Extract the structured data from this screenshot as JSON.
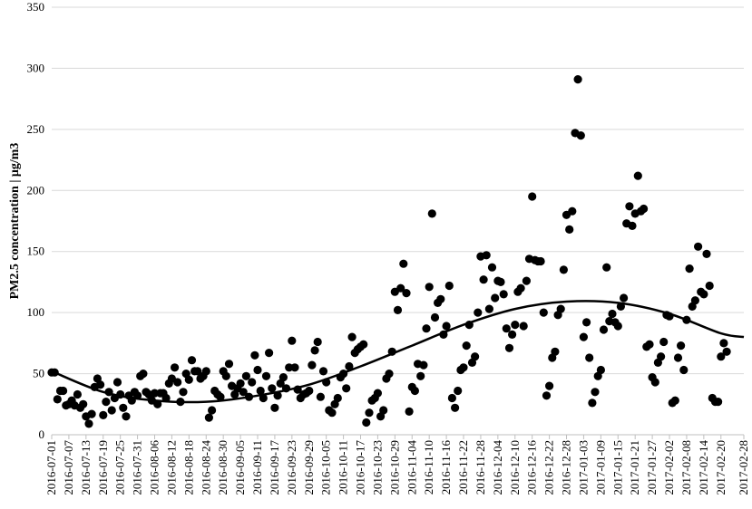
{
  "chart_data": {
    "type": "scatter",
    "ylabel": "PM2.5 concentration | μg/m3",
    "xlabel": "",
    "ylim": [
      0,
      350
    ],
    "yticks": [
      0,
      50,
      100,
      150,
      200,
      250,
      300,
      350
    ],
    "xlim": [
      "2016-07-01",
      "2017-02-28"
    ],
    "xtick_labels": [
      "2016-07-01",
      "2016-07-07",
      "2016-07-13",
      "2016-07-19",
      "2016-07-25",
      "2016-07-31",
      "2016-08-06",
      "2016-08-12",
      "2016-08-18",
      "2016-08-24",
      "2016-08-30",
      "2016-09-05",
      "2016-09-11",
      "2016-09-17",
      "2016-09-23",
      "2016-09-29",
      "2016-10-05",
      "2016-10-11",
      "2016-10-17",
      "2016-10-23",
      "2016-10-29",
      "2016-11-04",
      "2016-11-10",
      "2016-11-16",
      "2016-11-22",
      "2016-11-28",
      "2016-12-04",
      "2016-12-10",
      "2016-12-16",
      "2016-12-22",
      "2016-12-28",
      "2017-01-03",
      "2017-01-09",
      "2017-01-15",
      "2017-01-21",
      "2017-01-27",
      "2017-02-02",
      "2017-02-08",
      "2017-02-14",
      "2017-02-20",
      "2017-02-28"
    ],
    "grid": true,
    "marker_color": "#000000",
    "series": [
      {
        "type": "scatter",
        "points": [
          [
            "2016-07-01",
            51
          ],
          [
            "2016-07-02",
            51
          ],
          [
            "2016-07-03",
            29
          ],
          [
            "2016-07-04",
            36
          ],
          [
            "2016-07-05",
            36
          ],
          [
            "2016-07-06",
            24
          ],
          [
            "2016-07-07",
            25
          ],
          [
            "2016-07-08",
            28
          ],
          [
            "2016-07-09",
            24
          ],
          [
            "2016-07-10",
            33
          ],
          [
            "2016-07-11",
            22
          ],
          [
            "2016-07-12",
            25
          ],
          [
            "2016-07-13",
            15
          ],
          [
            "2016-07-14",
            9
          ],
          [
            "2016-07-15",
            17
          ],
          [
            "2016-07-16",
            39
          ],
          [
            "2016-07-17",
            46
          ],
          [
            "2016-07-18",
            41
          ],
          [
            "2016-07-19",
            16
          ],
          [
            "2016-07-20",
            27
          ],
          [
            "2016-07-21",
            35
          ],
          [
            "2016-07-22",
            20
          ],
          [
            "2016-07-23",
            30
          ],
          [
            "2016-07-24",
            43
          ],
          [
            "2016-07-25",
            33
          ],
          [
            "2016-07-26",
            22
          ],
          [
            "2016-07-27",
            15
          ],
          [
            "2016-07-28",
            32
          ],
          [
            "2016-07-29",
            28
          ],
          [
            "2016-07-30",
            35
          ],
          [
            "2016-07-31",
            32
          ],
          [
            "2016-08-01",
            48
          ],
          [
            "2016-08-02",
            50
          ],
          [
            "2016-08-03",
            35
          ],
          [
            "2016-08-04",
            33
          ],
          [
            "2016-08-05",
            28
          ],
          [
            "2016-08-06",
            34
          ],
          [
            "2016-08-07",
            25
          ],
          [
            "2016-08-08",
            34
          ],
          [
            "2016-08-09",
            34
          ],
          [
            "2016-08-10",
            30
          ],
          [
            "2016-08-11",
            42
          ],
          [
            "2016-08-12",
            46
          ],
          [
            "2016-08-13",
            55
          ],
          [
            "2016-08-14",
            43
          ],
          [
            "2016-08-15",
            27
          ],
          [
            "2016-08-16",
            35
          ],
          [
            "2016-08-17",
            50
          ],
          [
            "2016-08-18",
            45
          ],
          [
            "2016-08-19",
            61
          ],
          [
            "2016-08-20",
            52
          ],
          [
            "2016-08-21",
            52
          ],
          [
            "2016-08-22",
            46
          ],
          [
            "2016-08-23",
            48
          ],
          [
            "2016-08-24",
            52
          ],
          [
            "2016-08-25",
            14
          ],
          [
            "2016-08-26",
            20
          ],
          [
            "2016-08-27",
            36
          ],
          [
            "2016-08-28",
            33
          ],
          [
            "2016-08-29",
            31
          ],
          [
            "2016-08-30",
            52
          ],
          [
            "2016-08-31",
            48
          ],
          [
            "2016-09-01",
            58
          ],
          [
            "2016-09-02",
            40
          ],
          [
            "2016-09-03",
            33
          ],
          [
            "2016-09-04",
            38
          ],
          [
            "2016-09-05",
            42
          ],
          [
            "2016-09-06",
            35
          ],
          [
            "2016-09-07",
            48
          ],
          [
            "2016-09-08",
            31
          ],
          [
            "2016-09-09",
            43
          ],
          [
            "2016-09-10",
            65
          ],
          [
            "2016-09-11",
            53
          ],
          [
            "2016-09-12",
            36
          ],
          [
            "2016-09-13",
            30
          ],
          [
            "2016-09-14",
            48
          ],
          [
            "2016-09-15",
            67
          ],
          [
            "2016-09-16",
            38
          ],
          [
            "2016-09-17",
            22
          ],
          [
            "2016-09-18",
            32
          ],
          [
            "2016-09-19",
            42
          ],
          [
            "2016-09-20",
            47
          ],
          [
            "2016-09-21",
            38
          ],
          [
            "2016-09-22",
            55
          ],
          [
            "2016-09-23",
            77
          ],
          [
            "2016-09-24",
            55
          ],
          [
            "2016-09-25",
            37
          ],
          [
            "2016-09-26",
            30
          ],
          [
            "2016-09-27",
            33
          ],
          [
            "2016-09-28",
            34
          ],
          [
            "2016-09-29",
            36
          ],
          [
            "2016-09-30",
            57
          ],
          [
            "2016-10-01",
            69
          ],
          [
            "2016-10-02",
            76
          ],
          [
            "2016-10-03",
            31
          ],
          [
            "2016-10-04",
            52
          ],
          [
            "2016-10-05",
            43
          ],
          [
            "2016-10-06",
            20
          ],
          [
            "2016-10-07",
            18
          ],
          [
            "2016-10-08",
            25
          ],
          [
            "2016-10-09",
            30
          ],
          [
            "2016-10-10",
            47
          ],
          [
            "2016-10-11",
            50
          ],
          [
            "2016-10-12",
            38
          ],
          [
            "2016-10-13",
            56
          ],
          [
            "2016-10-14",
            80
          ],
          [
            "2016-10-15",
            67
          ],
          [
            "2016-10-16",
            70
          ],
          [
            "2016-10-17",
            72
          ],
          [
            "2016-10-18",
            74
          ],
          [
            "2016-10-19",
            10
          ],
          [
            "2016-10-20",
            18
          ],
          [
            "2016-10-21",
            28
          ],
          [
            "2016-10-22",
            30
          ],
          [
            "2016-10-23",
            34
          ],
          [
            "2016-10-24",
            15
          ],
          [
            "2016-10-25",
            20
          ],
          [
            "2016-10-26",
            46
          ],
          [
            "2016-10-27",
            50
          ],
          [
            "2016-10-28",
            68
          ],
          [
            "2016-10-29",
            117
          ],
          [
            "2016-10-30",
            102
          ],
          [
            "2016-10-31",
            120
          ],
          [
            "2016-11-01",
            140
          ],
          [
            "2016-11-02",
            116
          ],
          [
            "2016-11-03",
            19
          ],
          [
            "2016-11-04",
            39
          ],
          [
            "2016-11-05",
            36
          ],
          [
            "2016-11-06",
            58
          ],
          [
            "2016-11-07",
            48
          ],
          [
            "2016-11-08",
            57
          ],
          [
            "2016-11-09",
            87
          ],
          [
            "2016-11-10",
            121
          ],
          [
            "2016-11-11",
            181
          ],
          [
            "2016-11-12",
            96
          ],
          [
            "2016-11-13",
            108
          ],
          [
            "2016-11-14",
            111
          ],
          [
            "2016-11-15",
            82
          ],
          [
            "2016-11-16",
            89
          ],
          [
            "2016-11-17",
            122
          ],
          [
            "2016-11-18",
            30
          ],
          [
            "2016-11-19",
            22
          ],
          [
            "2016-11-20",
            36
          ],
          [
            "2016-11-21",
            53
          ],
          [
            "2016-11-22",
            55
          ],
          [
            "2016-11-23",
            73
          ],
          [
            "2016-11-24",
            90
          ],
          [
            "2016-11-25",
            59
          ],
          [
            "2016-11-26",
            64
          ],
          [
            "2016-11-27",
            100
          ],
          [
            "2016-11-28",
            146
          ],
          [
            "2016-11-29",
            127
          ],
          [
            "2016-11-30",
            147
          ],
          [
            "2016-12-01",
            103
          ],
          [
            "2016-12-02",
            137
          ],
          [
            "2016-12-03",
            112
          ],
          [
            "2016-12-04",
            126
          ],
          [
            "2016-12-05",
            125
          ],
          [
            "2016-12-06",
            115
          ],
          [
            "2016-12-07",
            87
          ],
          [
            "2016-12-08",
            71
          ],
          [
            "2016-12-09",
            82
          ],
          [
            "2016-12-10",
            90
          ],
          [
            "2016-12-11",
            117
          ],
          [
            "2016-12-12",
            120
          ],
          [
            "2016-12-13",
            89
          ],
          [
            "2016-12-14",
            126
          ],
          [
            "2016-12-15",
            144
          ],
          [
            "2016-12-16",
            195
          ],
          [
            "2016-12-17",
            143
          ],
          [
            "2016-12-18",
            142
          ],
          [
            "2016-12-19",
            142
          ],
          [
            "2016-12-20",
            100
          ],
          [
            "2016-12-21",
            32
          ],
          [
            "2016-12-22",
            40
          ],
          [
            "2016-12-23",
            63
          ],
          [
            "2016-12-24",
            68
          ],
          [
            "2016-12-25",
            98
          ],
          [
            "2016-12-26",
            103
          ],
          [
            "2016-12-27",
            135
          ],
          [
            "2016-12-28",
            180
          ],
          [
            "2016-12-29",
            168
          ],
          [
            "2016-12-30",
            183
          ],
          [
            "2016-12-31",
            247
          ],
          [
            "2017-01-01",
            291
          ],
          [
            "2017-01-02",
            245
          ],
          [
            "2017-01-03",
            80
          ],
          [
            "2017-01-04",
            92
          ],
          [
            "2017-01-05",
            63
          ],
          [
            "2017-01-06",
            26
          ],
          [
            "2017-01-07",
            35
          ],
          [
            "2017-01-08",
            48
          ],
          [
            "2017-01-09",
            53
          ],
          [
            "2017-01-10",
            86
          ],
          [
            "2017-01-11",
            137
          ],
          [
            "2017-01-12",
            93
          ],
          [
            "2017-01-13",
            99
          ],
          [
            "2017-01-14",
            92
          ],
          [
            "2017-01-15",
            89
          ],
          [
            "2017-01-16",
            105
          ],
          [
            "2017-01-17",
            112
          ],
          [
            "2017-01-18",
            173
          ],
          [
            "2017-01-19",
            187
          ],
          [
            "2017-01-20",
            171
          ],
          [
            "2017-01-21",
            181
          ],
          [
            "2017-01-22",
            212
          ],
          [
            "2017-01-23",
            183
          ],
          [
            "2017-01-24",
            185
          ],
          [
            "2017-01-25",
            72
          ],
          [
            "2017-01-26",
            74
          ],
          [
            "2017-01-27",
            47
          ],
          [
            "2017-01-28",
            43
          ],
          [
            "2017-01-29",
            59
          ],
          [
            "2017-01-30",
            64
          ],
          [
            "2017-01-31",
            76
          ],
          [
            "2017-02-01",
            98
          ],
          [
            "2017-02-02",
            97
          ],
          [
            "2017-02-03",
            26
          ],
          [
            "2017-02-04",
            28
          ],
          [
            "2017-02-05",
            63
          ],
          [
            "2017-02-06",
            73
          ],
          [
            "2017-02-07",
            53
          ],
          [
            "2017-02-08",
            94
          ],
          [
            "2017-02-09",
            136
          ],
          [
            "2017-02-10",
            105
          ],
          [
            "2017-02-11",
            110
          ],
          [
            "2017-02-12",
            154
          ],
          [
            "2017-02-13",
            117
          ],
          [
            "2017-02-14",
            115
          ],
          [
            "2017-02-15",
            148
          ],
          [
            "2017-02-16",
            122
          ],
          [
            "2017-02-17",
            30
          ],
          [
            "2017-02-18",
            27
          ],
          [
            "2017-02-19",
            27
          ],
          [
            "2017-02-20",
            64
          ],
          [
            "2017-02-21",
            75
          ],
          [
            "2017-02-22",
            68
          ]
        ]
      },
      {
        "type": "line",
        "points": [
          [
            "2016-07-01",
            52
          ],
          [
            "2016-07-19",
            35
          ],
          [
            "2016-08-06",
            28
          ],
          [
            "2016-08-24",
            27
          ],
          [
            "2016-09-11",
            32
          ],
          [
            "2016-09-29",
            41
          ],
          [
            "2016-10-17",
            56
          ],
          [
            "2016-11-04",
            73
          ],
          [
            "2016-11-22",
            90
          ],
          [
            "2016-12-10",
            103
          ],
          [
            "2016-12-28",
            109
          ],
          [
            "2017-01-15",
            108
          ],
          [
            "2017-02-02",
            99
          ],
          [
            "2017-02-20",
            83
          ],
          [
            "2017-02-28",
            80
          ]
        ]
      }
    ]
  }
}
